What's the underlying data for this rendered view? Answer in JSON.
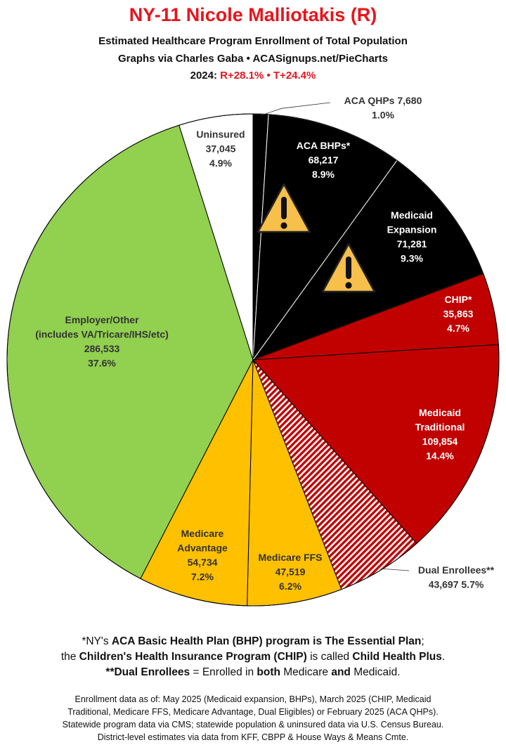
{
  "header": {
    "title": "NY-11 Nicole Malliotakis (R)",
    "subtitle": "Estimated Healthcare Program Enrollment of Total Population",
    "credit": "Graphs via Charles Gaba  •  ACASignups.net/PieCharts",
    "margin_prefix": "2024: ",
    "margin_r": "R+28.1%",
    "margin_sep": " • ",
    "margin_t": "T+24.4%"
  },
  "chart_data": {
    "type": "pie",
    "title": "NY-11 Nicole Malliotakis (R)",
    "start": "12 o'clock",
    "direction": "clockwise",
    "slices": [
      {
        "key": "aca_qhp",
        "lines": [
          "ACA QHPs 7,680",
          "1.0%"
        ],
        "value": 7680,
        "percent": 1.0,
        "color": "#000000"
      },
      {
        "key": "aca_bhp",
        "lines": [
          "ACA BHPs*",
          "68,217",
          "8.9%"
        ],
        "value": 68217,
        "percent": 8.9,
        "color": "#000000"
      },
      {
        "key": "medicaid_expansion",
        "lines": [
          "Medicaid",
          "Expansion",
          "71,281",
          "9.3%"
        ],
        "value": 71281,
        "percent": 9.3,
        "color": "#000000"
      },
      {
        "key": "chip",
        "lines": [
          "CHIP*",
          "35,863",
          "4.7%"
        ],
        "value": 35863,
        "percent": 4.7,
        "color": "#c10000"
      },
      {
        "key": "medicaid_traditional",
        "lines": [
          "Medicaid",
          "Traditional",
          "109,854",
          "14.4%"
        ],
        "value": 109854,
        "percent": 14.4,
        "color": "#c10000"
      },
      {
        "key": "dual",
        "lines": [
          "Dual Enrollees**",
          "43,697 5.7%"
        ],
        "value": 43697,
        "percent": 5.7,
        "color": "#c10000",
        "pattern": "hatch"
      },
      {
        "key": "medicare_ffs",
        "lines": [
          "Medicare FFS",
          "47,519",
          "6.2%"
        ],
        "value": 47519,
        "percent": 6.2,
        "color": "#ffc000"
      },
      {
        "key": "medicare_advantage",
        "lines": [
          "Medicare",
          "Advantage",
          "54,734",
          "7.2%"
        ],
        "value": 54734,
        "percent": 7.2,
        "color": "#ffc000"
      },
      {
        "key": "employer",
        "lines": [
          "Employer/Other",
          "(includes VA/Tricare/IHS/etc)",
          "286,533",
          "37.6%"
        ],
        "value": 286533,
        "percent": 37.6,
        "color": "#92d050"
      },
      {
        "key": "uninsured",
        "lines": [
          "Uninsured",
          "37,045",
          "4.9%"
        ],
        "value": 37045,
        "percent": 4.9,
        "color": "#ffffff"
      }
    ],
    "warning_icons": [
      "aca_bhp",
      "medicaid_expansion"
    ]
  },
  "footnote": {
    "l1_a": "*NY's ",
    "l1_b": "ACA Basic Health Plan (BHP) program is The Essential Plan",
    "l1_c": ";",
    "l2_a": "the ",
    "l2_b": "Children's Health Insurance Program (CHIP)",
    "l2_c": " is called ",
    "l2_d": "Child Health Plus",
    "l2_e": ".",
    "l3_a": "**Dual Enrollees",
    "l3_b": " = Enrolled in ",
    "l3_c": "both",
    "l3_d": " Medicare ",
    "l3_e": "and",
    "l3_f": " Medicaid."
  },
  "sources": {
    "line1": "Enrollment data as of: May 2025 (Medicaid expansion, BHPs), March 2025 (CHIP, Medicaid",
    "line2": "Traditional, Medicare FFS, Medicare Advantage, Dual Eligibles) or February 2025 (ACA QHPs).",
    "line3": "Statewide program data via CMS; statewide population & uninsured data via U.S. Census Bureau.",
    "line4": "District-level estimates via data from KFF, CBPP & House Ways & Means Cmte."
  }
}
